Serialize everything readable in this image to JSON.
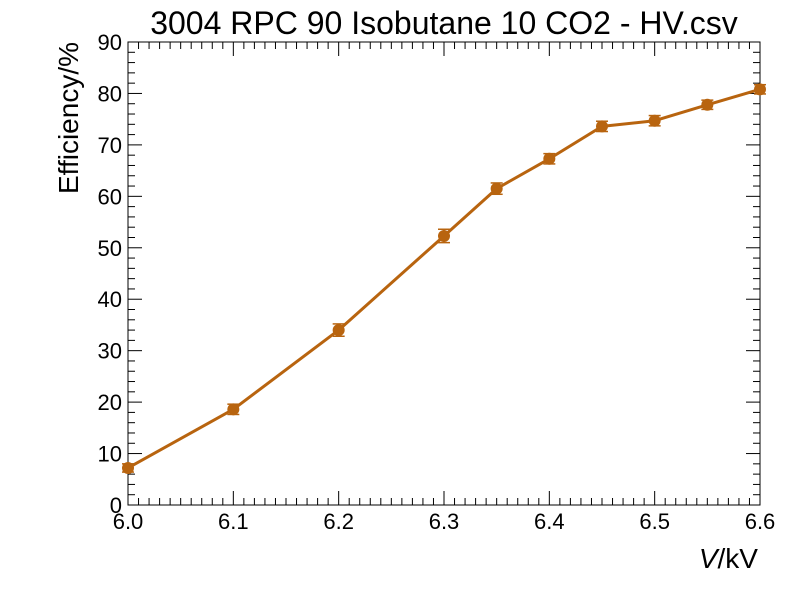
{
  "chart_data": {
    "type": "line",
    "title": "3004 RPC 90 Isobutane 10 CO2 - HV.csv",
    "xlabel_italic": "V",
    "xlabel_rest": "/kV",
    "ylabel": "Efficiency/%",
    "xlim": [
      6.0,
      6.6
    ],
    "ylim": [
      0,
      90
    ],
    "x_ticks": [
      "6.0",
      "6.1",
      "6.2",
      "6.3",
      "6.4",
      "6.5",
      "6.6"
    ],
    "y_ticks": [
      "0",
      "10",
      "20",
      "30",
      "40",
      "50",
      "60",
      "70",
      "80",
      "90"
    ],
    "grid": false,
    "series": [
      {
        "color": "#b8640f",
        "x": [
          6.0,
          6.1,
          6.2,
          6.3,
          6.35,
          6.4,
          6.45,
          6.5,
          6.55,
          6.6
        ],
        "y": [
          7.2,
          18.6,
          34.0,
          52.3,
          61.5,
          67.3,
          73.6,
          74.7,
          77.8,
          80.8
        ],
        "yerr": [
          0.8,
          1.0,
          1.2,
          1.3,
          1.1,
          1.0,
          1.0,
          1.0,
          0.9,
          0.9
        ]
      }
    ]
  }
}
